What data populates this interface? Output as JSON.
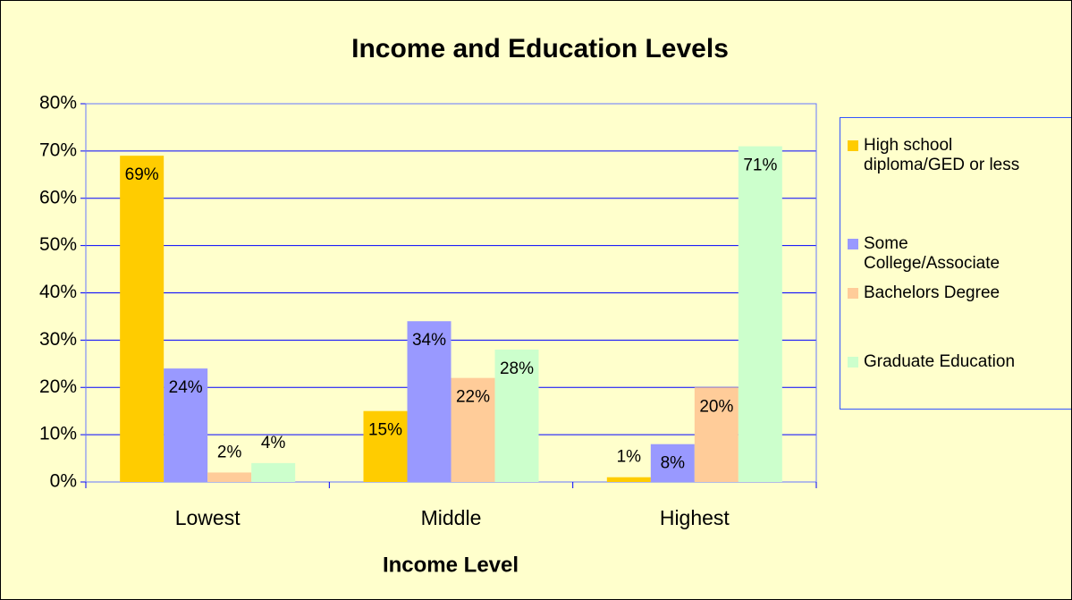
{
  "chart_data": {
    "type": "bar",
    "title": "Income and Education Levels",
    "x_label": "Income Level",
    "categories": [
      "Lowest",
      "Middle",
      "Highest"
    ],
    "series": [
      {
        "name": "High school diploma/GED or less",
        "color": "#ffcc00",
        "values": [
          69,
          15,
          1
        ],
        "value_labels": [
          "69%",
          "15%",
          "1%"
        ]
      },
      {
        "name": "Some College/Associate",
        "color": "#9999ff",
        "values": [
          24,
          34,
          8
        ],
        "value_labels": [
          "24%",
          "34%",
          "8%"
        ]
      },
      {
        "name": "Bachelors Degree",
        "color": "#ffcc99",
        "values": [
          2,
          22,
          20
        ],
        "value_labels": [
          "2%",
          "22%",
          "20%"
        ]
      },
      {
        "name": "Graduate Education",
        "color": "#ccffcc",
        "values": [
          4,
          28,
          71
        ],
        "value_labels": [
          "4%",
          "28%",
          "71%"
        ]
      }
    ],
    "ylim": [
      0,
      80
    ],
    "yticks": [
      {
        "value": 0,
        "label": "0%"
      },
      {
        "value": 10,
        "label": "10%"
      },
      {
        "value": 20,
        "label": "20%"
      },
      {
        "value": 30,
        "label": "30%"
      },
      {
        "value": 40,
        "label": "40%"
      },
      {
        "value": 50,
        "label": "50%"
      },
      {
        "value": 60,
        "label": "60%"
      },
      {
        "value": 70,
        "label": "70%"
      },
      {
        "value": 80,
        "label": "80%"
      }
    ],
    "grid": true,
    "legend": "right"
  }
}
